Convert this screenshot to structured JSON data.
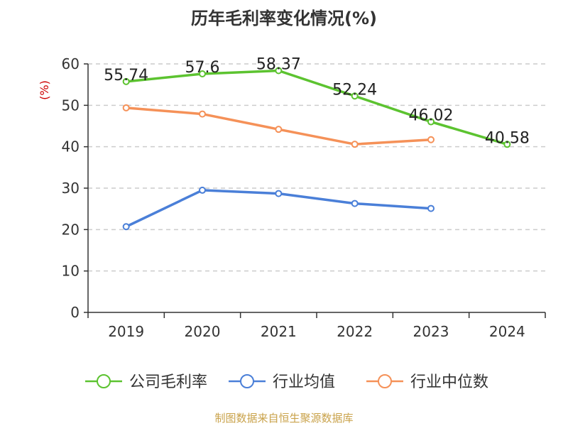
{
  "chart_data": {
    "type": "line",
    "title": "历年毛利率变化情况(%)",
    "ylabel": "(%)",
    "xlabel": "",
    "ylim": [
      0,
      60
    ],
    "yticks": [
      0,
      10,
      20,
      30,
      40,
      50,
      60
    ],
    "categories": [
      "2019",
      "2020",
      "2021",
      "2022",
      "2023",
      "2024"
    ],
    "grid": true,
    "legend_position": "bottom",
    "series": [
      {
        "name": "公司毛利率",
        "color": "#5cc330",
        "values": [
          55.74,
          57.6,
          58.37,
          52.24,
          46.02,
          40.58
        ],
        "labels": [
          "55.74",
          "57.6",
          "58.37",
          "52.24",
          "46.02",
          "40.58"
        ]
      },
      {
        "name": "行业均值",
        "color": "#4a7fd8",
        "values": [
          20.7,
          29.5,
          28.7,
          26.3,
          25.1,
          null
        ]
      },
      {
        "name": "行业中位数",
        "color": "#f59158",
        "values": [
          49.4,
          47.9,
          44.2,
          40.6,
          41.7,
          null
        ]
      }
    ]
  },
  "colors": {
    "ylabel": "#cc0000",
    "axis": "#333333",
    "grid": "#cccccc",
    "source": "#c9a24a"
  },
  "footer": {
    "source": "制图数据来自恒生聚源数据库"
  }
}
